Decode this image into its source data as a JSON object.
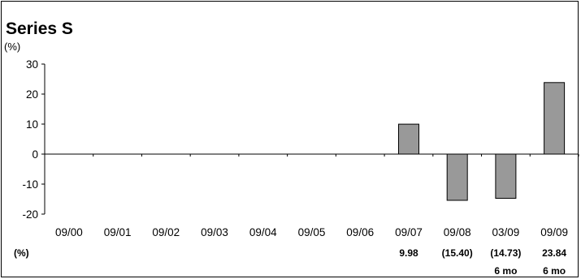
{
  "chart_data": {
    "type": "bar",
    "title": "Series S",
    "y_unit": "(%)",
    "ylim": [
      -20,
      30
    ],
    "yticks": [
      30,
      20,
      10,
      0,
      -10,
      -20
    ],
    "categories": [
      "09/00",
      "09/01",
      "09/02",
      "09/03",
      "09/04",
      "09/05",
      "09/06",
      "09/07",
      "09/08",
      "03/09",
      "09/09"
    ],
    "values": [
      null,
      null,
      null,
      null,
      null,
      null,
      null,
      9.98,
      -15.4,
      -14.73,
      23.84
    ],
    "bar_color": "#999999",
    "grid": false,
    "table": {
      "row_label": "(%)",
      "value_labels": [
        "",
        "",
        "",
        "",
        "",
        "",
        "",
        "9.98",
        "(15.40)",
        "(14.73)",
        "23.84"
      ],
      "period_labels": [
        "",
        "",
        "",
        "",
        "",
        "",
        "",
        "",
        "",
        "6 mo",
        "6 mo"
      ]
    }
  }
}
